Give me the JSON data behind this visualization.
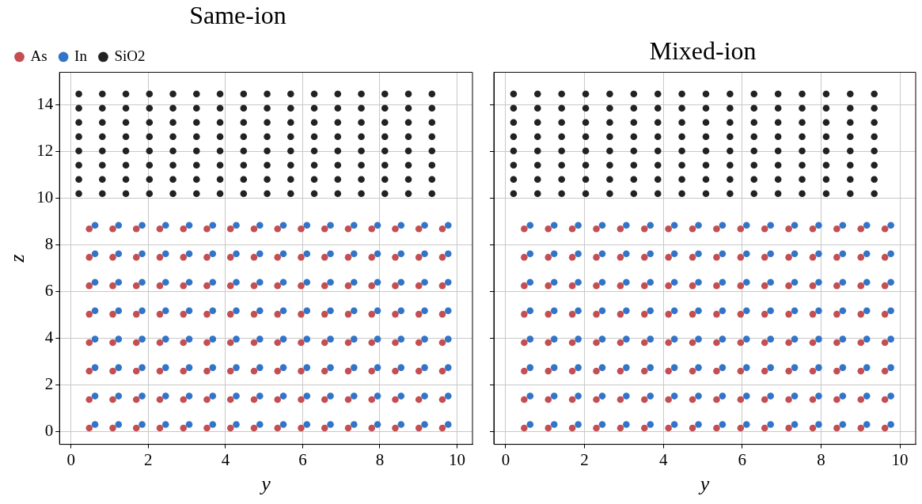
{
  "chart_data": [
    {
      "type": "scatter",
      "title": "Same-ion",
      "xlabel": "y",
      "ylabel": "z",
      "xlim": [
        -0.3,
        10.4
      ],
      "ylim": [
        -0.55,
        15.4
      ],
      "xticks": [
        0,
        2,
        4,
        6,
        8,
        10
      ],
      "yticks": [
        0,
        2,
        4,
        6,
        8,
        10,
        12,
        14
      ],
      "grid": true,
      "legend": "top left",
      "marker": "circle",
      "series": [
        {
          "name": "As",
          "color": "#c44e52",
          "x": [
            0.47,
            1.08,
            1.69,
            2.3,
            2.91,
            3.52,
            4.13,
            4.74,
            5.35,
            5.96,
            6.57,
            7.18,
            7.79,
            8.4,
            9.01,
            9.62,
            0.47,
            1.08,
            1.69,
            2.3,
            2.91,
            3.52,
            4.13,
            4.74,
            5.35,
            5.96,
            6.57,
            7.18,
            7.79,
            8.4,
            9.01,
            9.62,
            0.47,
            1.08,
            1.69,
            2.3,
            2.91,
            3.52,
            4.13,
            4.74,
            5.35,
            5.96,
            6.57,
            7.18,
            7.79,
            8.4,
            9.01,
            9.62,
            0.47,
            1.08,
            1.69,
            2.3,
            2.91,
            3.52,
            4.13,
            4.74,
            5.35,
            5.96,
            6.57,
            7.18,
            7.79,
            8.4,
            9.01,
            9.62,
            0.47,
            1.08,
            1.69,
            2.3,
            2.91,
            3.52,
            4.13,
            4.74,
            5.35,
            5.96,
            6.57,
            7.18,
            7.79,
            8.4,
            9.01,
            9.62,
            0.47,
            1.08,
            1.69,
            2.3,
            2.91,
            3.52,
            4.13,
            4.74,
            5.35,
            5.96,
            6.57,
            7.18,
            7.79,
            8.4,
            9.01,
            9.62,
            0.47,
            1.08,
            1.69,
            2.3,
            2.91,
            3.52,
            4.13,
            4.74,
            5.35,
            5.96,
            6.57,
            7.18,
            7.79,
            8.4,
            9.01,
            9.62,
            0.47,
            1.08,
            1.69,
            2.3,
            2.91,
            3.52,
            4.13,
            4.74,
            5.35,
            5.96,
            6.57,
            7.18,
            7.79,
            8.4,
            9.01,
            9.62
          ],
          "values": [
            0.15,
            0.15,
            0.15,
            0.15,
            0.15,
            0.15,
            0.15,
            0.15,
            0.15,
            0.15,
            0.15,
            0.15,
            0.15,
            0.15,
            0.15,
            0.15,
            1.37,
            1.37,
            1.37,
            1.37,
            1.37,
            1.37,
            1.37,
            1.37,
            1.37,
            1.37,
            1.37,
            1.37,
            1.37,
            1.37,
            1.37,
            1.37,
            2.59,
            2.59,
            2.59,
            2.59,
            2.59,
            2.59,
            2.59,
            2.59,
            2.59,
            2.59,
            2.59,
            2.59,
            2.59,
            2.59,
            2.59,
            2.59,
            3.81,
            3.81,
            3.81,
            3.81,
            3.81,
            3.81,
            3.81,
            3.81,
            3.81,
            3.81,
            3.81,
            3.81,
            3.81,
            3.81,
            3.81,
            3.81,
            5.03,
            5.03,
            5.03,
            5.03,
            5.03,
            5.03,
            5.03,
            5.03,
            5.03,
            5.03,
            5.03,
            5.03,
            5.03,
            5.03,
            5.03,
            5.03,
            6.25,
            6.25,
            6.25,
            6.25,
            6.25,
            6.25,
            6.25,
            6.25,
            6.25,
            6.25,
            6.25,
            6.25,
            6.25,
            6.25,
            6.25,
            6.25,
            7.47,
            7.47,
            7.47,
            7.47,
            7.47,
            7.47,
            7.47,
            7.47,
            7.47,
            7.47,
            7.47,
            7.47,
            7.47,
            7.47,
            7.47,
            7.47,
            8.69,
            8.69,
            8.69,
            8.69,
            8.69,
            8.69,
            8.69,
            8.69,
            8.69,
            8.69,
            8.69,
            8.69,
            8.69,
            8.69,
            8.69,
            8.69
          ]
        },
        {
          "name": "In",
          "color": "#3274c8",
          "x": [
            0.62,
            1.23,
            1.84,
            2.45,
            3.06,
            3.67,
            4.28,
            4.89,
            5.5,
            6.11,
            6.72,
            7.33,
            7.94,
            8.55,
            9.16,
            9.77,
            0.62,
            1.23,
            1.84,
            2.45,
            3.06,
            3.67,
            4.28,
            4.89,
            5.5,
            6.11,
            6.72,
            7.33,
            7.94,
            8.55,
            9.16,
            9.77,
            0.62,
            1.23,
            1.84,
            2.45,
            3.06,
            3.67,
            4.28,
            4.89,
            5.5,
            6.11,
            6.72,
            7.33,
            7.94,
            8.55,
            9.16,
            9.77,
            0.62,
            1.23,
            1.84,
            2.45,
            3.06,
            3.67,
            4.28,
            4.89,
            5.5,
            6.11,
            6.72,
            7.33,
            7.94,
            8.55,
            9.16,
            9.77,
            0.62,
            1.23,
            1.84,
            2.45,
            3.06,
            3.67,
            4.28,
            4.89,
            5.5,
            6.11,
            6.72,
            7.33,
            7.94,
            8.55,
            9.16,
            9.77,
            0.62,
            1.23,
            1.84,
            2.45,
            3.06,
            3.67,
            4.28,
            4.89,
            5.5,
            6.11,
            6.72,
            7.33,
            7.94,
            8.55,
            9.16,
            9.77,
            0.62,
            1.23,
            1.84,
            2.45,
            3.06,
            3.67,
            4.28,
            4.89,
            5.5,
            6.11,
            6.72,
            7.33,
            7.94,
            8.55,
            9.16,
            9.77,
            0.62,
            1.23,
            1.84,
            2.45,
            3.06,
            3.67,
            4.28,
            4.89,
            5.5,
            6.11,
            6.72,
            7.33,
            7.94,
            8.55,
            9.16,
            9.77
          ],
          "values": [
            0.3,
            0.3,
            0.3,
            0.3,
            0.3,
            0.3,
            0.3,
            0.3,
            0.3,
            0.3,
            0.3,
            0.3,
            0.3,
            0.3,
            0.3,
            0.3,
            1.52,
            1.52,
            1.52,
            1.52,
            1.52,
            1.52,
            1.52,
            1.52,
            1.52,
            1.52,
            1.52,
            1.52,
            1.52,
            1.52,
            1.52,
            1.52,
            2.74,
            2.74,
            2.74,
            2.74,
            2.74,
            2.74,
            2.74,
            2.74,
            2.74,
            2.74,
            2.74,
            2.74,
            2.74,
            2.74,
            2.74,
            2.74,
            3.96,
            3.96,
            3.96,
            3.96,
            3.96,
            3.96,
            3.96,
            3.96,
            3.96,
            3.96,
            3.96,
            3.96,
            3.96,
            3.96,
            3.96,
            3.96,
            5.18,
            5.18,
            5.18,
            5.18,
            5.18,
            5.18,
            5.18,
            5.18,
            5.18,
            5.18,
            5.18,
            5.18,
            5.18,
            5.18,
            5.18,
            5.18,
            6.4,
            6.4,
            6.4,
            6.4,
            6.4,
            6.4,
            6.4,
            6.4,
            6.4,
            6.4,
            6.4,
            6.4,
            6.4,
            6.4,
            6.4,
            6.4,
            7.62,
            7.62,
            7.62,
            7.62,
            7.62,
            7.62,
            7.62,
            7.62,
            7.62,
            7.62,
            7.62,
            7.62,
            7.62,
            7.62,
            7.62,
            7.62,
            8.84,
            8.84,
            8.84,
            8.84,
            8.84,
            8.84,
            8.84,
            8.84,
            8.84,
            8.84,
            8.84,
            8.84,
            8.84,
            8.84,
            8.84,
            8.84
          ]
        },
        {
          "name": "SiO2",
          "color": "#222222",
          "x": [
            0.2,
            0.81,
            1.42,
            2.03,
            2.64,
            3.25,
            3.86,
            4.47,
            5.08,
            5.69,
            6.3,
            6.91,
            7.52,
            8.13,
            8.74,
            9.35,
            0.2,
            0.81,
            1.42,
            2.03,
            2.64,
            3.25,
            3.86,
            4.47,
            5.08,
            5.69,
            6.3,
            6.91,
            7.52,
            8.13,
            8.74,
            9.35,
            0.2,
            0.81,
            1.42,
            2.03,
            2.64,
            3.25,
            3.86,
            4.47,
            5.08,
            5.69,
            6.3,
            6.91,
            7.52,
            8.13,
            8.74,
            9.35,
            0.2,
            0.81,
            1.42,
            2.03,
            2.64,
            3.25,
            3.86,
            4.47,
            5.08,
            5.69,
            6.3,
            6.91,
            7.52,
            8.13,
            8.74,
            9.35,
            0.2,
            0.81,
            1.42,
            2.03,
            2.64,
            3.25,
            3.86,
            4.47,
            5.08,
            5.69,
            6.3,
            6.91,
            7.52,
            8.13,
            8.74,
            9.35,
            0.2,
            0.81,
            1.42,
            2.03,
            2.64,
            3.25,
            3.86,
            4.47,
            5.08,
            5.69,
            6.3,
            6.91,
            7.52,
            8.13,
            8.74,
            9.35,
            0.2,
            0.81,
            1.42,
            2.03,
            2.64,
            3.25,
            3.86,
            4.47,
            5.08,
            5.69,
            6.3,
            6.91,
            7.52,
            8.13,
            8.74,
            9.35,
            0.2,
            0.81,
            1.42,
            2.03,
            2.64,
            3.25,
            3.86,
            4.47,
            5.08,
            5.69,
            6.3,
            6.91,
            7.52,
            8.13,
            8.74,
            9.35
          ],
          "values": [
            10.2,
            10.2,
            10.2,
            10.2,
            10.2,
            10.2,
            10.2,
            10.2,
            10.2,
            10.2,
            10.2,
            10.2,
            10.2,
            10.2,
            10.2,
            10.2,
            10.81,
            10.81,
            10.81,
            10.81,
            10.81,
            10.81,
            10.81,
            10.81,
            10.81,
            10.81,
            10.81,
            10.81,
            10.81,
            10.81,
            10.81,
            10.81,
            11.42,
            11.42,
            11.42,
            11.42,
            11.42,
            11.42,
            11.42,
            11.42,
            11.42,
            11.42,
            11.42,
            11.42,
            11.42,
            11.42,
            11.42,
            11.42,
            12.03,
            12.03,
            12.03,
            12.03,
            12.03,
            12.03,
            12.03,
            12.03,
            12.03,
            12.03,
            12.03,
            12.03,
            12.03,
            12.03,
            12.03,
            12.03,
            12.64,
            12.64,
            12.64,
            12.64,
            12.64,
            12.64,
            12.64,
            12.64,
            12.64,
            12.64,
            12.64,
            12.64,
            12.64,
            12.64,
            12.64,
            12.64,
            13.25,
            13.25,
            13.25,
            13.25,
            13.25,
            13.25,
            13.25,
            13.25,
            13.25,
            13.25,
            13.25,
            13.25,
            13.25,
            13.25,
            13.25,
            13.25,
            13.86,
            13.86,
            13.86,
            13.86,
            13.86,
            13.86,
            13.86,
            13.86,
            13.86,
            13.86,
            13.86,
            13.86,
            13.86,
            13.86,
            13.86,
            13.86,
            14.47,
            14.47,
            14.47,
            14.47,
            14.47,
            14.47,
            14.47,
            14.47,
            14.47,
            14.47,
            14.47,
            14.47,
            14.47,
            14.47,
            14.47,
            14.47
          ]
        }
      ]
    },
    {
      "type": "scatter",
      "title": "Mixed-ion",
      "xlabel": "y",
      "xlim": [
        -0.3,
        10.4
      ],
      "ylim": [
        -0.55,
        15.4
      ],
      "xticks": [
        0,
        2,
        4,
        6,
        8,
        10
      ],
      "yticks": [
        0,
        2,
        4,
        6,
        8,
        10,
        12,
        14
      ],
      "grid": true,
      "tick_labels": "x",
      "marker": "circle",
      "series": [
        {
          "color": "#c44e52",
          "x": [
            0.47,
            1.08,
            1.69,
            2.3,
            2.91,
            3.52,
            4.13,
            4.74,
            5.35,
            5.96,
            6.57,
            7.18,
            7.79,
            8.4,
            9.01,
            9.62,
            0.47,
            1.08,
            1.69,
            2.3,
            2.91,
            3.52,
            4.13,
            4.74,
            5.35,
            5.96,
            6.57,
            7.18,
            7.79,
            8.4,
            9.01,
            9.62,
            0.47,
            1.08,
            1.69,
            2.3,
            2.91,
            3.52,
            4.13,
            4.74,
            5.35,
            5.96,
            6.57,
            7.18,
            7.79,
            8.4,
            9.01,
            9.62,
            0.47,
            1.08,
            1.69,
            2.3,
            2.91,
            3.52,
            4.13,
            4.74,
            5.35,
            5.96,
            6.57,
            7.18,
            7.79,
            8.4,
            9.01,
            9.62,
            0.47,
            1.08,
            1.69,
            2.3,
            2.91,
            3.52,
            4.13,
            4.74,
            5.35,
            5.96,
            6.57,
            7.18,
            7.79,
            8.4,
            9.01,
            9.62,
            0.47,
            1.08,
            1.69,
            2.3,
            2.91,
            3.52,
            4.13,
            4.74,
            5.35,
            5.96,
            6.57,
            7.18,
            7.79,
            8.4,
            9.01,
            9.62,
            0.47,
            1.08,
            1.69,
            2.3,
            2.91,
            3.52,
            4.13,
            4.74,
            5.35,
            5.96,
            6.57,
            7.18,
            7.79,
            8.4,
            9.01,
            9.62,
            0.47,
            1.08,
            1.69,
            2.3,
            2.91,
            3.52,
            4.13,
            4.74,
            5.35,
            5.96,
            6.57,
            7.18,
            7.79,
            8.4,
            9.01,
            9.62
          ],
          "values": [
            0.15,
            0.15,
            0.15,
            0.15,
            0.15,
            0.15,
            0.15,
            0.15,
            0.15,
            0.15,
            0.15,
            0.15,
            0.15,
            0.15,
            0.15,
            0.15,
            1.37,
            1.37,
            1.37,
            1.37,
            1.37,
            1.37,
            1.37,
            1.37,
            1.37,
            1.37,
            1.37,
            1.37,
            1.37,
            1.37,
            1.37,
            1.37,
            2.59,
            2.59,
            2.59,
            2.59,
            2.59,
            2.59,
            2.59,
            2.59,
            2.59,
            2.59,
            2.59,
            2.59,
            2.59,
            2.59,
            2.59,
            2.59,
            3.81,
            3.81,
            3.81,
            3.81,
            3.81,
            3.81,
            3.81,
            3.81,
            3.81,
            3.81,
            3.81,
            3.81,
            3.81,
            3.81,
            3.81,
            3.81,
            5.03,
            5.03,
            5.03,
            5.03,
            5.03,
            5.03,
            5.03,
            5.03,
            5.03,
            5.03,
            5.03,
            5.03,
            5.03,
            5.03,
            5.03,
            5.03,
            6.25,
            6.25,
            6.25,
            6.25,
            6.25,
            6.25,
            6.25,
            6.25,
            6.25,
            6.25,
            6.25,
            6.25,
            6.25,
            6.25,
            6.25,
            6.25,
            7.47,
            7.47,
            7.47,
            7.47,
            7.47,
            7.47,
            7.47,
            7.47,
            7.47,
            7.47,
            7.47,
            7.47,
            7.47,
            7.47,
            7.47,
            7.47,
            8.69,
            8.69,
            8.69,
            8.69,
            8.69,
            8.69,
            8.69,
            8.69,
            8.69,
            8.69,
            8.69,
            8.69,
            8.69,
            8.69,
            8.69,
            8.69
          ]
        },
        {
          "color": "#3274c8",
          "x": [
            0.62,
            1.23,
            1.84,
            2.45,
            3.06,
            3.67,
            4.28,
            4.89,
            5.5,
            6.11,
            6.72,
            7.33,
            7.94,
            8.55,
            9.16,
            9.77,
            0.62,
            1.23,
            1.84,
            2.45,
            3.06,
            3.67,
            4.28,
            4.89,
            5.5,
            6.11,
            6.72,
            7.33,
            7.94,
            8.55,
            9.16,
            9.77,
            0.62,
            1.23,
            1.84,
            2.45,
            3.06,
            3.67,
            4.28,
            4.89,
            5.5,
            6.11,
            6.72,
            7.33,
            7.94,
            8.55,
            9.16,
            9.77,
            0.62,
            1.23,
            1.84,
            2.45,
            3.06,
            3.67,
            4.28,
            4.89,
            5.5,
            6.11,
            6.72,
            7.33,
            7.94,
            8.55,
            9.16,
            9.77,
            0.62,
            1.23,
            1.84,
            2.45,
            3.06,
            3.67,
            4.28,
            4.89,
            5.5,
            6.11,
            6.72,
            7.33,
            7.94,
            8.55,
            9.16,
            9.77,
            0.62,
            1.23,
            1.84,
            2.45,
            3.06,
            3.67,
            4.28,
            4.89,
            5.5,
            6.11,
            6.72,
            7.33,
            7.94,
            8.55,
            9.16,
            9.77,
            0.62,
            1.23,
            1.84,
            2.45,
            3.06,
            3.67,
            4.28,
            4.89,
            5.5,
            6.11,
            6.72,
            7.33,
            7.94,
            8.55,
            9.16,
            9.77,
            0.62,
            1.23,
            1.84,
            2.45,
            3.06,
            3.67,
            4.28,
            4.89,
            5.5,
            6.11,
            6.72,
            7.33,
            7.94,
            8.55,
            9.16,
            9.77
          ],
          "values": [
            0.3,
            0.3,
            0.3,
            0.3,
            0.3,
            0.3,
            0.3,
            0.3,
            0.3,
            0.3,
            0.3,
            0.3,
            0.3,
            0.3,
            0.3,
            0.3,
            1.52,
            1.52,
            1.52,
            1.52,
            1.52,
            1.52,
            1.52,
            1.52,
            1.52,
            1.52,
            1.52,
            1.52,
            1.52,
            1.52,
            1.52,
            1.52,
            2.74,
            2.74,
            2.74,
            2.74,
            2.74,
            2.74,
            2.74,
            2.74,
            2.74,
            2.74,
            2.74,
            2.74,
            2.74,
            2.74,
            2.74,
            2.74,
            3.96,
            3.96,
            3.96,
            3.96,
            3.96,
            3.96,
            3.96,
            3.96,
            3.96,
            3.96,
            3.96,
            3.96,
            3.96,
            3.96,
            3.96,
            3.96,
            5.18,
            5.18,
            5.18,
            5.18,
            5.18,
            5.18,
            5.18,
            5.18,
            5.18,
            5.18,
            5.18,
            5.18,
            5.18,
            5.18,
            5.18,
            5.18,
            6.4,
            6.4,
            6.4,
            6.4,
            6.4,
            6.4,
            6.4,
            6.4,
            6.4,
            6.4,
            6.4,
            6.4,
            6.4,
            6.4,
            6.4,
            6.4,
            7.62,
            7.62,
            7.62,
            7.62,
            7.62,
            7.62,
            7.62,
            7.62,
            7.62,
            7.62,
            7.62,
            7.62,
            7.62,
            7.62,
            7.62,
            7.62,
            8.84,
            8.84,
            8.84,
            8.84,
            8.84,
            8.84,
            8.84,
            8.84,
            8.84,
            8.84,
            8.84,
            8.84,
            8.84,
            8.84,
            8.84,
            8.84
          ]
        },
        {
          "color": "#222222",
          "x": [
            0.2,
            0.81,
            1.42,
            2.03,
            2.64,
            3.25,
            3.86,
            4.47,
            5.08,
            5.69,
            6.3,
            6.91,
            7.52,
            8.13,
            8.74,
            9.35,
            0.2,
            0.81,
            1.42,
            2.03,
            2.64,
            3.25,
            3.86,
            4.47,
            5.08,
            5.69,
            6.3,
            6.91,
            7.52,
            8.13,
            8.74,
            9.35,
            0.2,
            0.81,
            1.42,
            2.03,
            2.64,
            3.25,
            3.86,
            4.47,
            5.08,
            5.69,
            6.3,
            6.91,
            7.52,
            8.13,
            8.74,
            9.35,
            0.2,
            0.81,
            1.42,
            2.03,
            2.64,
            3.25,
            3.86,
            4.47,
            5.08,
            5.69,
            6.3,
            6.91,
            7.52,
            8.13,
            8.74,
            9.35,
            0.2,
            0.81,
            1.42,
            2.03,
            2.64,
            3.25,
            3.86,
            4.47,
            5.08,
            5.69,
            6.3,
            6.91,
            7.52,
            8.13,
            8.74,
            9.35,
            0.2,
            0.81,
            1.42,
            2.03,
            2.64,
            3.25,
            3.86,
            4.47,
            5.08,
            5.69,
            6.3,
            6.91,
            7.52,
            8.13,
            8.74,
            9.35,
            0.2,
            0.81,
            1.42,
            2.03,
            2.64,
            3.25,
            3.86,
            4.47,
            5.08,
            5.69,
            6.3,
            6.91,
            7.52,
            8.13,
            8.74,
            9.35,
            0.2,
            0.81,
            1.42,
            2.03,
            2.64,
            3.25,
            3.86,
            4.47,
            5.08,
            5.69,
            6.3,
            6.91,
            7.52,
            8.13,
            8.74,
            9.35
          ],
          "values": [
            10.2,
            10.2,
            10.2,
            10.2,
            10.2,
            10.2,
            10.2,
            10.2,
            10.2,
            10.2,
            10.2,
            10.2,
            10.2,
            10.2,
            10.2,
            10.2,
            10.81,
            10.81,
            10.81,
            10.81,
            10.81,
            10.81,
            10.81,
            10.81,
            10.81,
            10.81,
            10.81,
            10.81,
            10.81,
            10.81,
            10.81,
            10.81,
            11.42,
            11.42,
            11.42,
            11.42,
            11.42,
            11.42,
            11.42,
            11.42,
            11.42,
            11.42,
            11.42,
            11.42,
            11.42,
            11.42,
            11.42,
            11.42,
            12.03,
            12.03,
            12.03,
            12.03,
            12.03,
            12.03,
            12.03,
            12.03,
            12.03,
            12.03,
            12.03,
            12.03,
            12.03,
            12.03,
            12.03,
            12.03,
            12.64,
            12.64,
            12.64,
            12.64,
            12.64,
            12.64,
            12.64,
            12.64,
            12.64,
            12.64,
            12.64,
            12.64,
            12.64,
            12.64,
            12.64,
            12.64,
            13.25,
            13.25,
            13.25,
            13.25,
            13.25,
            13.25,
            13.25,
            13.25,
            13.25,
            13.25,
            13.25,
            13.25,
            13.25,
            13.25,
            13.25,
            13.25,
            13.86,
            13.86,
            13.86,
            13.86,
            13.86,
            13.86,
            13.86,
            13.86,
            13.86,
            13.86,
            13.86,
            13.86,
            13.86,
            13.86,
            13.86,
            13.86,
            14.47,
            14.47,
            14.47,
            14.47,
            14.47,
            14.47,
            14.47,
            14.47,
            14.47,
            14.47,
            14.47,
            14.47,
            14.47,
            14.47,
            14.47,
            14.47
          ]
        }
      ]
    }
  ]
}
